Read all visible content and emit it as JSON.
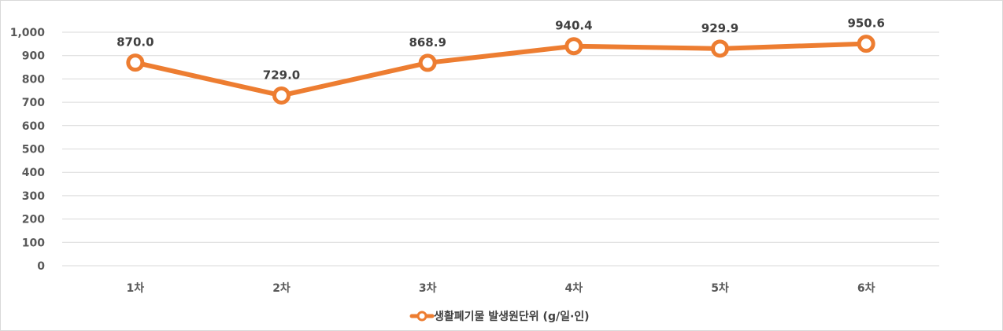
{
  "chart_data": {
    "type": "line",
    "title": "",
    "xlabel": "",
    "ylabel": "",
    "categories": [
      "1차",
      "2차",
      "3차",
      "4차",
      "5차",
      "6차"
    ],
    "series": [
      {
        "name": "생활폐기물 발생원단위 (g/일·인)",
        "values": [
          870.0,
          729.0,
          868.9,
          940.4,
          929.9,
          950.6
        ],
        "data_labels": [
          "870.0",
          "729.0",
          "868.9",
          "940.4",
          "929.9",
          "950.6"
        ],
        "color": "#ED7D31"
      }
    ],
    "ylim": [
      0,
      1000
    ],
    "yticks": [
      0,
      100,
      200,
      300,
      400,
      500,
      600,
      700,
      800,
      900,
      1000
    ],
    "ytick_labels": [
      "0",
      "100",
      "200",
      "300",
      "400",
      "500",
      "600",
      "700",
      "800",
      "900",
      "1,000"
    ],
    "grid": true,
    "legend": "bottom",
    "colors": {
      "line": "#ED7D31",
      "grid": "#d9d9d9",
      "marker_fill": "#ffffff"
    }
  }
}
